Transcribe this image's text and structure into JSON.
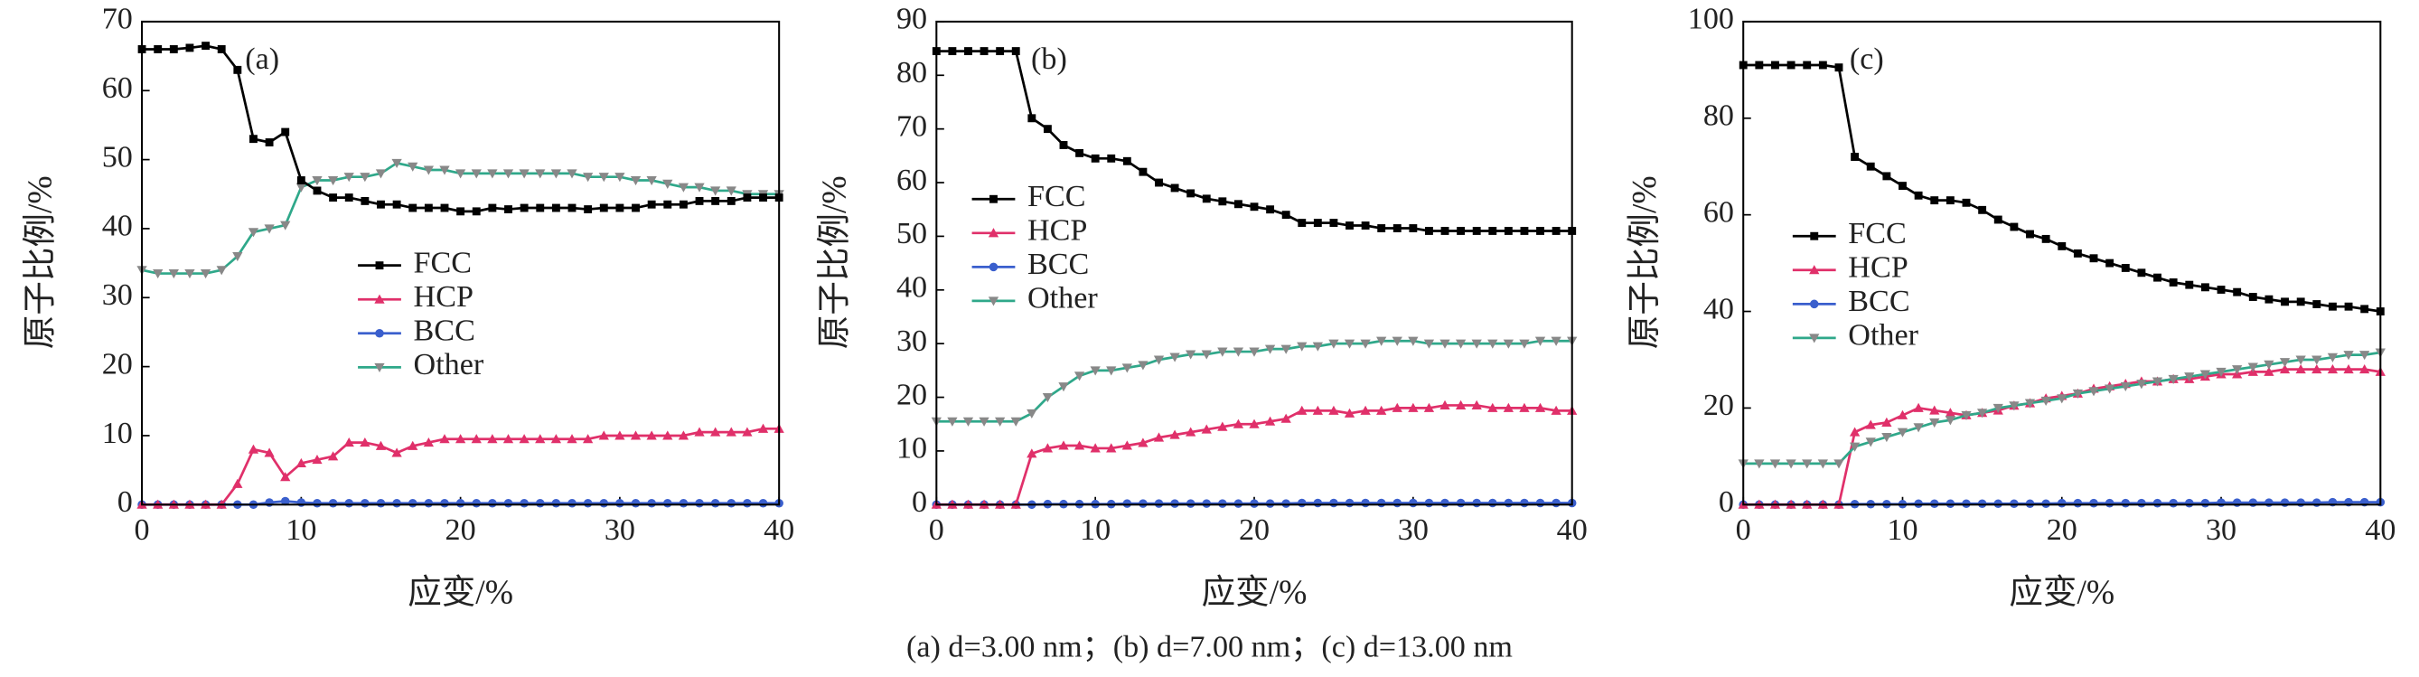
{
  "chart_data": [
    {
      "type": "line",
      "panel_label": "(a)",
      "xlabel": "应变/%",
      "ylabel": "原子比例/%",
      "x": [
        0,
        1,
        2,
        3,
        4,
        5,
        6,
        7,
        8,
        9,
        10,
        11,
        12,
        13,
        14,
        15,
        16,
        17,
        18,
        19,
        20,
        21,
        22,
        23,
        24,
        25,
        26,
        27,
        28,
        29,
        30,
        31,
        32,
        33,
        34,
        35,
        36,
        37,
        38,
        39,
        40
      ],
      "xlim": [
        0,
        40
      ],
      "xticks": [
        0,
        10,
        20,
        30,
        40
      ],
      "ylim": [
        0,
        70
      ],
      "yticks": [
        0,
        10,
        20,
        30,
        40,
        50,
        60,
        70
      ],
      "series": [
        {
          "name": "FCC",
          "color": "#000000",
          "values": [
            66,
            66,
            66,
            66.2,
            66.5,
            66,
            63,
            53,
            52.5,
            54,
            47,
            45.5,
            44.5,
            44.5,
            44,
            43.5,
            43.5,
            43,
            43,
            43,
            42.5,
            42.5,
            43,
            42.8,
            43,
            43,
            43,
            43,
            42.8,
            43,
            43,
            43,
            43.5,
            43.5,
            43.5,
            44,
            44,
            44,
            44.5,
            44.5,
            44.5
          ]
        },
        {
          "name": "HCP",
          "color": "#e0306a",
          "values": [
            0,
            0,
            0,
            0,
            0,
            0,
            3,
            8,
            7.5,
            4,
            6,
            6.5,
            7,
            9,
            9,
            8.5,
            7.5,
            8.5,
            9,
            9.5,
            9.5,
            9.5,
            9.5,
            9.5,
            9.5,
            9.5,
            9.5,
            9.5,
            9.5,
            10,
            10,
            10,
            10,
            10,
            10,
            10.5,
            10.5,
            10.5,
            10.5,
            11,
            11
          ]
        },
        {
          "name": "BCC",
          "color": "#3a5fcd",
          "values": [
            0,
            0,
            0,
            0,
            0,
            0,
            0,
            0,
            0.3,
            0.5,
            0.3,
            0.2,
            0.2,
            0.2,
            0.2,
            0.2,
            0.2,
            0.2,
            0.2,
            0.2,
            0.2,
            0.2,
            0.2,
            0.2,
            0.2,
            0.2,
            0.2,
            0.2,
            0.2,
            0.2,
            0.2,
            0.2,
            0.2,
            0.2,
            0.2,
            0.2,
            0.2,
            0.2,
            0.2,
            0.2,
            0.2
          ]
        },
        {
          "name": "Other",
          "color": "#2fa88a",
          "values": [
            34,
            33.5,
            33.5,
            33.5,
            33.5,
            34,
            36,
            39.5,
            40,
            40.5,
            46,
            47,
            47,
            47.5,
            47.5,
            48,
            49.5,
            49,
            48.5,
            48.5,
            48,
            48,
            48,
            48,
            48,
            48,
            48,
            48,
            47.5,
            47.5,
            47.5,
            47,
            47,
            46.5,
            46,
            46,
            45.5,
            45.5,
            45,
            45,
            45
          ]
        }
      ]
    },
    {
      "type": "line",
      "panel_label": "(b)",
      "xlabel": "应变/%",
      "ylabel": "原子比例/%",
      "x": [
        0,
        1,
        2,
        3,
        4,
        5,
        6,
        7,
        8,
        9,
        10,
        11,
        12,
        13,
        14,
        15,
        16,
        17,
        18,
        19,
        20,
        21,
        22,
        23,
        24,
        25,
        26,
        27,
        28,
        29,
        30,
        31,
        32,
        33,
        34,
        35,
        36,
        37,
        38,
        39,
        40
      ],
      "xlim": [
        0,
        40
      ],
      "xticks": [
        0,
        10,
        20,
        30,
        40
      ],
      "ylim": [
        0,
        90
      ],
      "yticks": [
        0,
        10,
        20,
        30,
        40,
        50,
        60,
        70,
        80,
        90
      ],
      "series": [
        {
          "name": "FCC",
          "color": "#000000",
          "values": [
            84.5,
            84.5,
            84.5,
            84.5,
            84.5,
            84.5,
            72,
            70,
            67,
            65.5,
            64.5,
            64.5,
            64,
            62,
            60,
            59,
            58,
            57,
            56.5,
            56,
            55.5,
            55,
            54,
            52.5,
            52.5,
            52.5,
            52,
            52,
            51.5,
            51.5,
            51.5,
            51,
            51,
            51,
            51,
            51,
            51,
            51,
            51,
            51,
            51
          ]
        },
        {
          "name": "HCP",
          "color": "#e0306a",
          "values": [
            0,
            0,
            0,
            0,
            0,
            0,
            9.5,
            10.5,
            11,
            11,
            10.5,
            10.5,
            11,
            11.5,
            12.5,
            13,
            13.5,
            14,
            14.5,
            15,
            15,
            15.5,
            16,
            17.5,
            17.5,
            17.5,
            17,
            17.5,
            17.5,
            18,
            18,
            18,
            18.5,
            18.5,
            18.5,
            18,
            18,
            18,
            18,
            17.5,
            17.5
          ]
        },
        {
          "name": "BCC",
          "color": "#3a5fcd",
          "values": [
            0,
            0,
            0,
            0,
            0,
            0,
            0,
            0.1,
            0.1,
            0.1,
            0.1,
            0.1,
            0.2,
            0.2,
            0.2,
            0.2,
            0.2,
            0.2,
            0.2,
            0.2,
            0.2,
            0.2,
            0.2,
            0.3,
            0.3,
            0.3,
            0.3,
            0.3,
            0.3,
            0.3,
            0.3,
            0.3,
            0.3,
            0.3,
            0.3,
            0.3,
            0.3,
            0.3,
            0.3,
            0.3,
            0.3
          ]
        },
        {
          "name": "Other",
          "color": "#2fa88a",
          "values": [
            15.5,
            15.5,
            15.5,
            15.5,
            15.5,
            15.5,
            17,
            20,
            22,
            24,
            25,
            25,
            25.5,
            26,
            27,
            27.5,
            28,
            28,
            28.5,
            28.5,
            28.5,
            29,
            29,
            29.5,
            29.5,
            30,
            30,
            30,
            30.5,
            30.5,
            30.5,
            30,
            30,
            30,
            30,
            30,
            30,
            30,
            30.5,
            30.5,
            30.5
          ]
        }
      ]
    },
    {
      "type": "line",
      "panel_label": "(c)",
      "xlabel": "应变/%",
      "ylabel": "原子比例/%",
      "x": [
        0,
        1,
        2,
        3,
        4,
        5,
        6,
        7,
        8,
        9,
        10,
        11,
        12,
        13,
        14,
        15,
        16,
        17,
        18,
        19,
        20,
        21,
        22,
        23,
        24,
        25,
        26,
        27,
        28,
        29,
        30,
        31,
        32,
        33,
        34,
        35,
        36,
        37,
        38,
        39,
        40
      ],
      "xlim": [
        0,
        40
      ],
      "xticks": [
        0,
        10,
        20,
        30,
        40
      ],
      "ylim": [
        0,
        100
      ],
      "yticks": [
        0,
        20,
        40,
        60,
        80,
        100
      ],
      "series": [
        {
          "name": "FCC",
          "color": "#000000",
          "values": [
            91,
            91,
            91,
            91,
            91,
            91,
            90.5,
            72,
            70,
            68,
            66,
            64,
            63,
            63,
            62.5,
            61,
            59,
            57.5,
            56,
            55,
            53.5,
            52,
            51,
            50,
            49,
            48,
            47,
            46,
            45.5,
            45,
            44.5,
            44,
            43,
            42.5,
            42,
            42,
            41.5,
            41,
            41,
            40.5,
            40
          ]
        },
        {
          "name": "HCP",
          "color": "#e0306a",
          "values": [
            0,
            0,
            0,
            0,
            0,
            0,
            0,
            15,
            16.5,
            17,
            18.5,
            20,
            19.5,
            19,
            18.5,
            19,
            19.5,
            20.5,
            21,
            22,
            22.5,
            23,
            24,
            24.5,
            25,
            25.5,
            25.5,
            26,
            26,
            26.5,
            27,
            27,
            27.5,
            27.5,
            28,
            28,
            28,
            28,
            28,
            28,
            27.5
          ]
        },
        {
          "name": "BCC",
          "color": "#3a5fcd",
          "values": [
            0,
            0,
            0,
            0,
            0,
            0,
            0,
            0.1,
            0.1,
            0.1,
            0.1,
            0.2,
            0.2,
            0.2,
            0.2,
            0.2,
            0.2,
            0.2,
            0.2,
            0.2,
            0.3,
            0.3,
            0.3,
            0.3,
            0.3,
            0.3,
            0.3,
            0.3,
            0.3,
            0.3,
            0.4,
            0.4,
            0.4,
            0.4,
            0.4,
            0.4,
            0.4,
            0.5,
            0.5,
            0.5,
            0.5
          ]
        },
        {
          "name": "Other",
          "color": "#2fa88a",
          "values": [
            8.5,
            8.5,
            8.5,
            8.5,
            8.5,
            8.5,
            8.5,
            12,
            13,
            14,
            15,
            16,
            17,
            17.5,
            18.5,
            19,
            20,
            20.5,
            21,
            21.5,
            22,
            23,
            23.5,
            24,
            24.5,
            25,
            25.5,
            26,
            26.5,
            27,
            27.5,
            28,
            28.5,
            29,
            29.5,
            30,
            30,
            30.5,
            31,
            31,
            31.5
          ]
        }
      ]
    }
  ],
  "caption": "(a) d=3.00 nm；(b) d=7.00 nm；(c) d=13.00 nm"
}
